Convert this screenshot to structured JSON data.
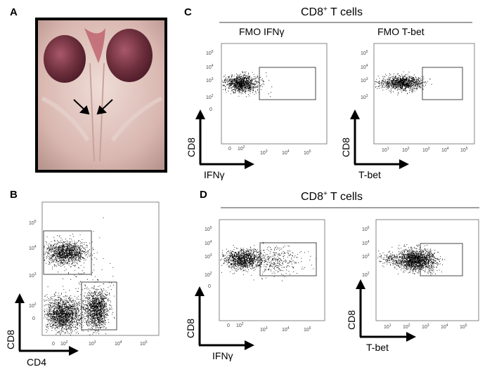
{
  "panels": {
    "A": {
      "letter": "A"
    },
    "B": {
      "letter": "B",
      "x_axis_label": "CD4",
      "y_axis_label": "CD8",
      "x_ticks": [
        "0",
        "10",
        "10",
        "10",
        "10"
      ],
      "x_tick_exponents": [
        "",
        "2",
        "3",
        "4",
        "5"
      ],
      "y_ticks": [
        "0",
        "10",
        "10",
        "10",
        "10"
      ],
      "y_tick_exponents": [
        "",
        "2",
        "3",
        "4",
        "5"
      ]
    },
    "C": {
      "letter": "C",
      "header": "CD8",
      "header_sup": "+",
      "header_rest": " T cells",
      "left_title": "FMO IFNγ",
      "right_title": "FMO T-bet",
      "left_x_label": "IFNγ",
      "right_x_label": "T-bet",
      "y_label": "CD8"
    },
    "D": {
      "letter": "D",
      "header": "CD8",
      "header_sup": "+",
      "header_rest": " T cells",
      "left_x_label": "IFNγ",
      "right_x_label": "T-bet",
      "y_label": "CD8"
    }
  },
  "tick_labels": {
    "zero": "0",
    "base": "10",
    "exp2": "2",
    "exp3": "3",
    "exp4": "4",
    "exp5": "5"
  },
  "colors": {
    "dots": "#000000",
    "photo_frame": "#000000",
    "tissue_pink": "#d7b3ad",
    "kidney": "#6e2f3d"
  }
}
